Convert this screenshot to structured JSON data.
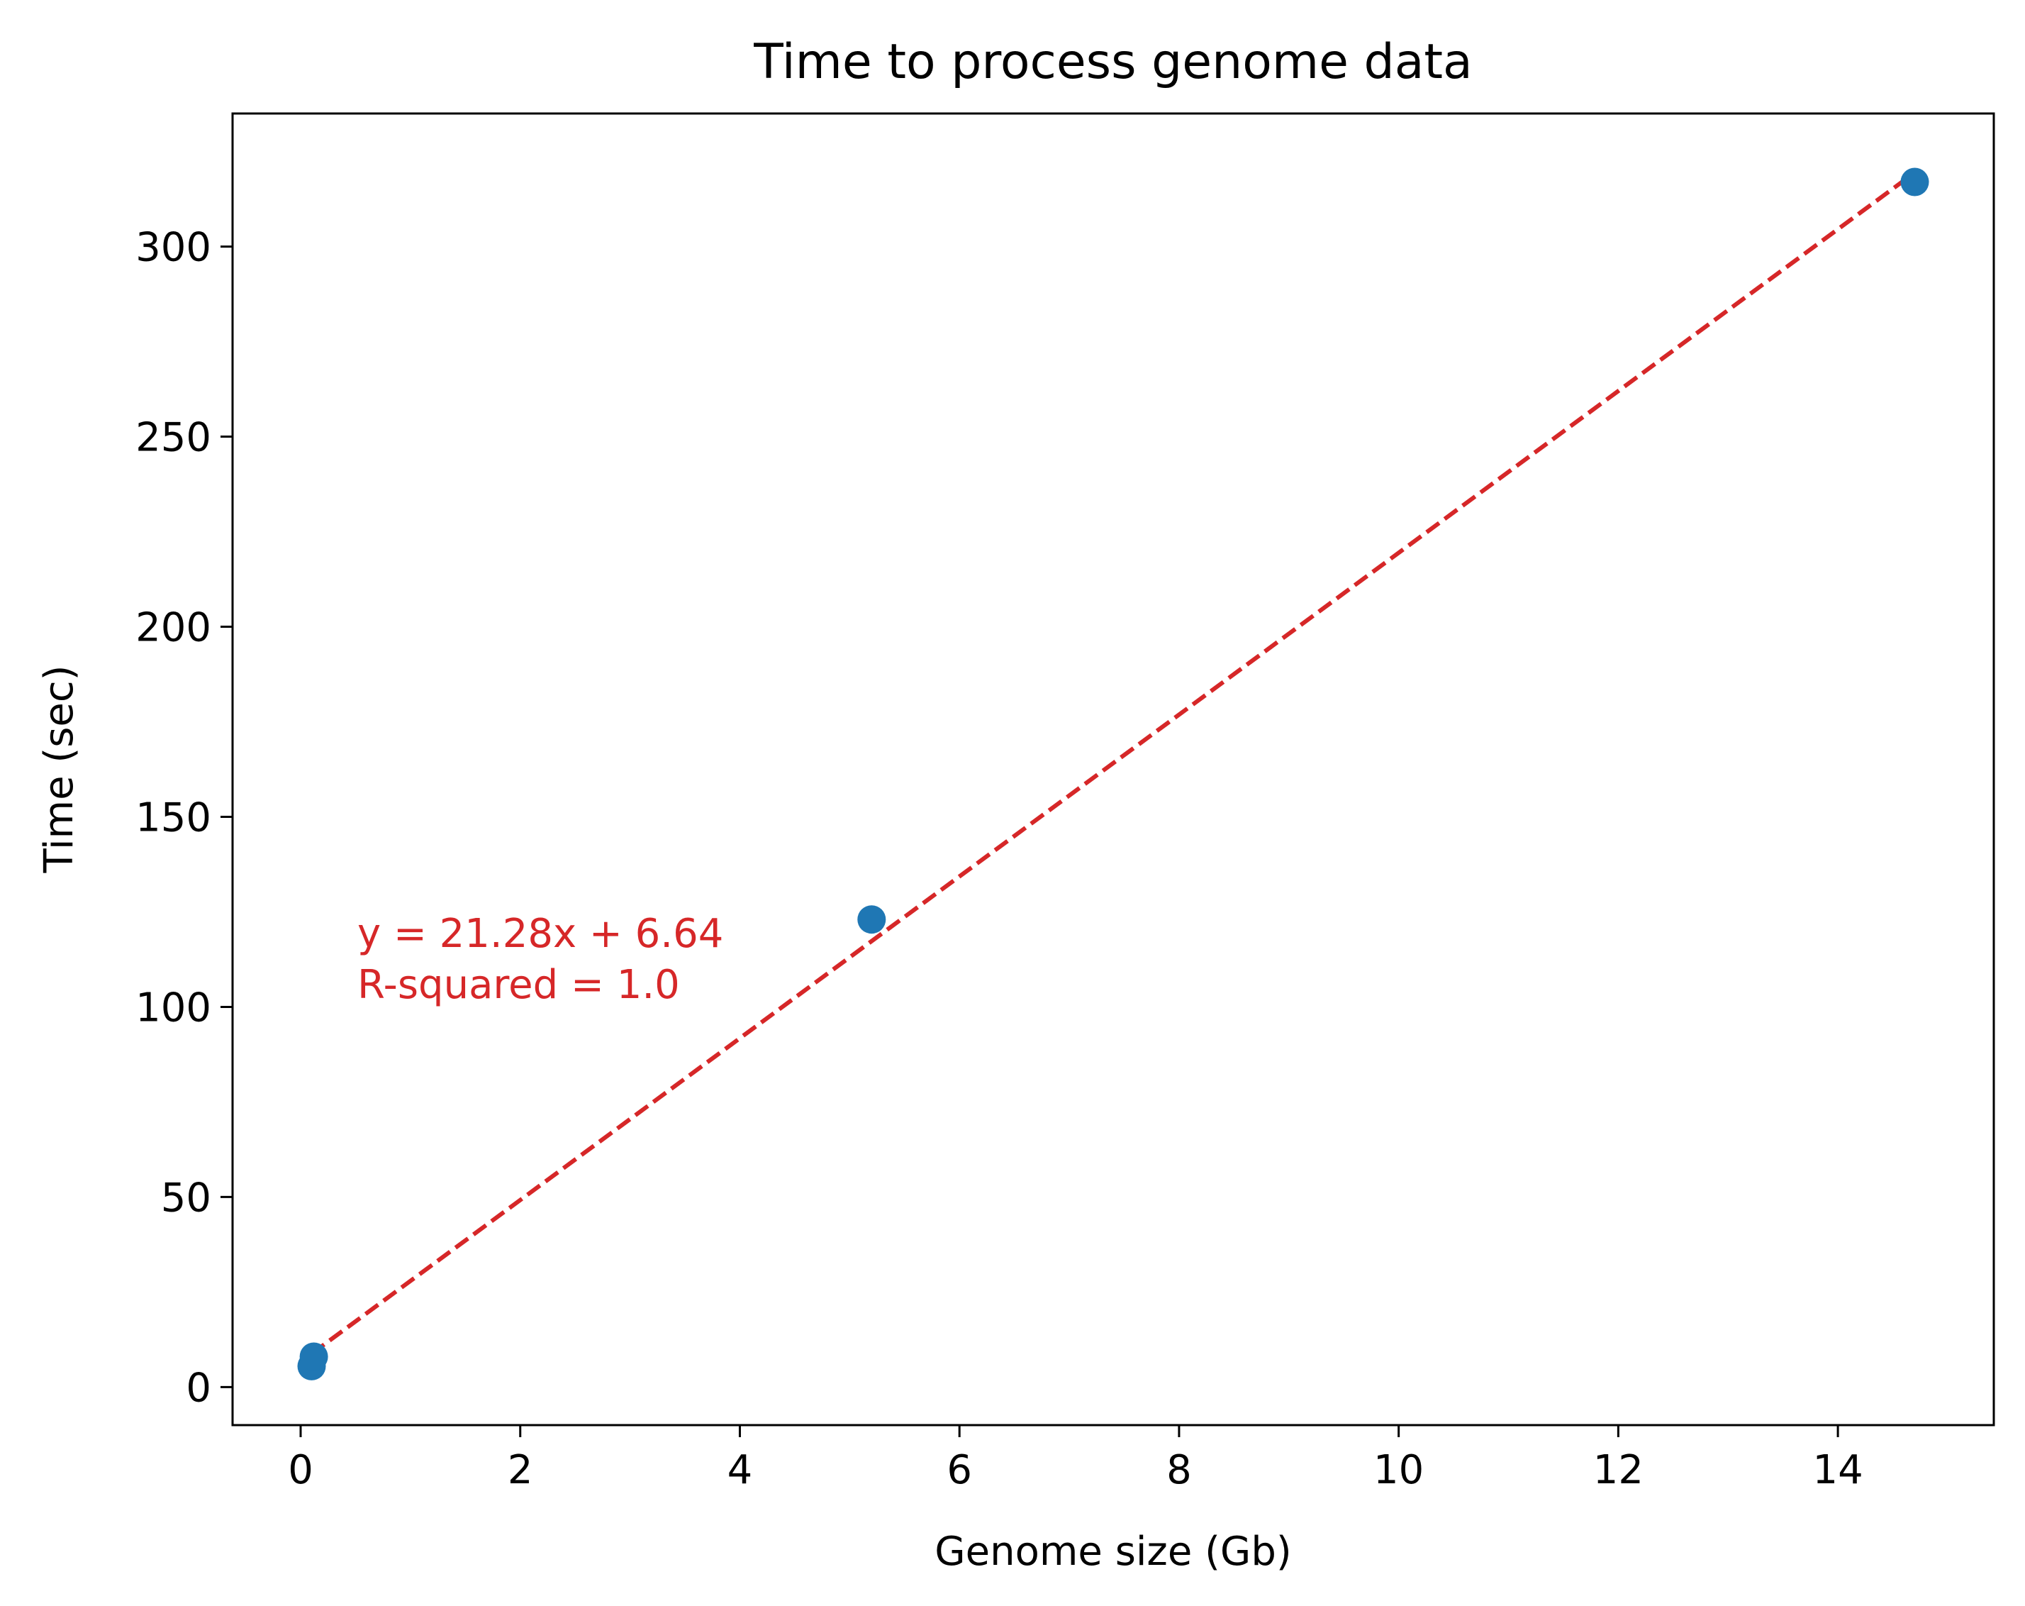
{
  "chart_data": {
    "type": "scatter",
    "title": "Time to process genome data",
    "xlabel": "Genome size (Gb)",
    "ylabel": "Time (sec)",
    "xlim": [
      -0.62,
      15.42
    ],
    "ylim": [
      -10,
      335
    ],
    "xticks": [
      0,
      2,
      4,
      6,
      8,
      10,
      12,
      14
    ],
    "yticks": [
      0,
      50,
      100,
      150,
      200,
      250,
      300
    ],
    "grid": false,
    "series": [
      {
        "points": [
          {
            "x": 0.1,
            "y": 5.5
          },
          {
            "x": 0.12,
            "y": 8
          },
          {
            "x": 5.2,
            "y": 123
          },
          {
            "x": 14.7,
            "y": 317
          }
        ],
        "color": "#1f77b4"
      }
    ],
    "fit_line": {
      "x": [
        0.1,
        14.7
      ],
      "y": [
        8.77,
        319.46
      ],
      "color": "#d62728",
      "style": "dashed"
    },
    "annotation": {
      "lines": [
        "y = 21.28x + 6.64",
        "R-squared = 1.0"
      ],
      "color": "#d62728"
    }
  }
}
